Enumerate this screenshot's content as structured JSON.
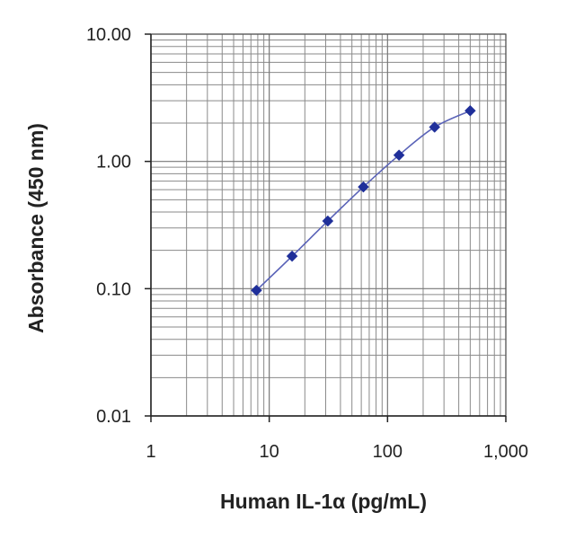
{
  "chart_data": {
    "type": "scatter",
    "title": "",
    "xlabel": "Human IL-1α (pg/mL)",
    "ylabel": "Absorbance (450 nm)",
    "x_scale": "log",
    "y_scale": "log",
    "xlim": [
      1,
      1000
    ],
    "ylim": [
      0.01,
      10
    ],
    "x_ticks": [
      1,
      10,
      100,
      1000
    ],
    "x_tick_labels": [
      "1",
      "10",
      "100",
      "1,000"
    ],
    "y_ticks": [
      0.01,
      0.1,
      1,
      10
    ],
    "y_tick_labels": [
      "0.01",
      "0.10",
      "1.00",
      "10.00"
    ],
    "grid": true,
    "legend": "none",
    "series": [
      {
        "x": [
          7.8,
          15.6,
          31.25,
          62.5,
          125,
          250,
          500
        ],
        "y": [
          0.097,
          0.18,
          0.34,
          0.63,
          1.12,
          1.86,
          2.5
        ],
        "color": "#1f2f9a",
        "line_color": "#5a63b8",
        "marker": "diamond"
      }
    ]
  }
}
